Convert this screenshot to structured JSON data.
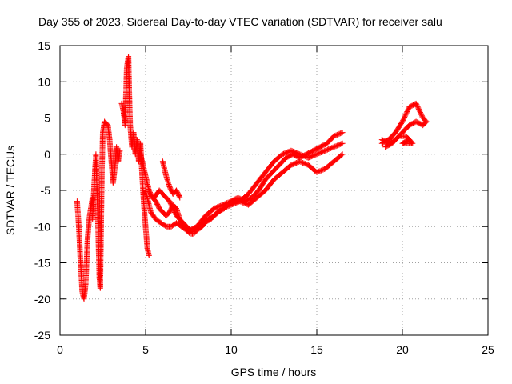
{
  "chart_data": {
    "type": "scatter",
    "title": "Day 355 of 2023, Sidereal Day-to-day VTEC variation (SDTVAR) for receiver salu",
    "xlabel": "GPS time / hours",
    "ylabel": "SDTVAR / TECUs",
    "xlim": [
      0,
      25
    ],
    "ylim": [
      -25,
      15
    ],
    "xticks": [
      0,
      5,
      10,
      15,
      20,
      25
    ],
    "yticks": [
      -25,
      -20,
      -15,
      -10,
      -5,
      0,
      5,
      10,
      15
    ],
    "grid": true,
    "marker": "+",
    "series": [
      {
        "name": "SDTVAR",
        "color": "#ff0000",
        "tracks": [
          [
            [
              1.0,
              -6.5
            ],
            [
              1.1,
              -10.0
            ],
            [
              1.2,
              -15.0
            ],
            [
              1.3,
              -19.0
            ],
            [
              1.4,
              -20.0
            ],
            [
              1.5,
              -18.0
            ],
            [
              1.6,
              -12.0
            ],
            [
              1.7,
              -9.0
            ],
            [
              1.8,
              -7.5
            ],
            [
              1.9,
              -6.0
            ]
          ],
          [
            [
              1.9,
              -9.0
            ],
            [
              2.0,
              -4.0
            ],
            [
              2.1,
              0.0
            ],
            [
              2.2,
              -8.0
            ],
            [
              2.3,
              -17.0
            ],
            [
              2.35,
              -18.5
            ],
            [
              2.4,
              -10.0
            ],
            [
              2.45,
              -2.0
            ],
            [
              2.5,
              3.0
            ],
            [
              2.6,
              4.5
            ],
            [
              2.8,
              4.0
            ],
            [
              2.9,
              2.0
            ],
            [
              3.0,
              -1.0
            ],
            [
              3.1,
              -4.0
            ],
            [
              3.2,
              -2.0
            ],
            [
              3.3,
              1.0
            ],
            [
              3.4,
              -1.0
            ],
            [
              3.5,
              0.5
            ]
          ],
          [
            [
              3.6,
              7.0
            ],
            [
              3.7,
              6.0
            ],
            [
              3.8,
              4.0
            ],
            [
              3.9,
              12.0
            ],
            [
              4.0,
              13.5
            ],
            [
              4.05,
              8.0
            ],
            [
              4.1,
              4.0
            ],
            [
              4.2,
              1.0
            ],
            [
              4.3,
              3.0
            ],
            [
              4.4,
              0.0
            ],
            [
              4.5,
              2.0
            ],
            [
              4.6,
              -1.0
            ],
            [
              4.7,
              1.5
            ],
            [
              4.8,
              -3.0
            ],
            [
              4.9,
              -7.0
            ],
            [
              5.0,
              -10.0
            ],
            [
              5.1,
              -13.0
            ],
            [
              5.2,
              -14.0
            ]
          ],
          [
            [
              4.7,
              0.0
            ],
            [
              5.0,
              -3.0
            ],
            [
              5.2,
              -5.0
            ],
            [
              5.4,
              -6.0
            ],
            [
              5.6,
              -6.5
            ],
            [
              5.8,
              -7.5
            ],
            [
              6.0,
              -8.0
            ],
            [
              6.2,
              -8.5
            ],
            [
              6.4,
              -8.0
            ],
            [
              6.6,
              -7.0
            ],
            [
              6.8,
              -7.5
            ],
            [
              7.0,
              -9.0
            ],
            [
              7.2,
              -10.0
            ],
            [
              7.4,
              -10.5
            ],
            [
              7.6,
              -11.0
            ],
            [
              7.8,
              -11.0
            ],
            [
              8.0,
              -10.5
            ],
            [
              8.3,
              -10.0
            ],
            [
              8.6,
              -9.0
            ],
            [
              9.0,
              -8.5
            ],
            [
              9.5,
              -7.5
            ],
            [
              10.0,
              -7.0
            ],
            [
              10.5,
              -6.5
            ],
            [
              11.0,
              -7.0
            ],
            [
              11.5,
              -6.0
            ],
            [
              12.0,
              -5.0
            ],
            [
              12.5,
              -3.5
            ],
            [
              13.0,
              -2.5
            ],
            [
              13.5,
              -1.5
            ],
            [
              14.0,
              -1.0
            ],
            [
              14.5,
              -1.5
            ],
            [
              15.0,
              -2.5
            ],
            [
              15.5,
              -2.0
            ],
            [
              16.0,
              -1.0
            ],
            [
              16.5,
              0.0
            ]
          ],
          [
            [
              5.0,
              -5.0
            ],
            [
              5.3,
              -8.0
            ],
            [
              5.6,
              -9.0
            ],
            [
              5.9,
              -9.5
            ],
            [
              6.2,
              -10.0
            ],
            [
              6.5,
              -10.0
            ],
            [
              6.8,
              -9.5
            ],
            [
              7.1,
              -10.0
            ],
            [
              7.4,
              -10.5
            ],
            [
              7.7,
              -10.5
            ],
            [
              8.0,
              -10.0
            ],
            [
              8.4,
              -9.5
            ],
            [
              8.8,
              -9.0
            ],
            [
              9.2,
              -8.0
            ],
            [
              9.6,
              -7.5
            ],
            [
              10.0,
              -6.5
            ],
            [
              10.4,
              -6.0
            ],
            [
              10.8,
              -6.5
            ],
            [
              11.2,
              -6.0
            ],
            [
              11.6,
              -5.0
            ],
            [
              12.0,
              -3.5
            ],
            [
              12.4,
              -2.5
            ],
            [
              12.8,
              -1.5
            ],
            [
              13.2,
              -0.5
            ],
            [
              13.6,
              0.0
            ],
            [
              14.0,
              -0.5
            ],
            [
              14.4,
              0.0
            ],
            [
              14.8,
              0.5
            ],
            [
              15.2,
              1.0
            ],
            [
              15.6,
              1.5
            ],
            [
              16.0,
              2.5
            ],
            [
              16.5,
              3.0
            ]
          ],
          [
            [
              5.5,
              -6.0
            ],
            [
              5.8,
              -5.0
            ],
            [
              6.0,
              -5.5
            ],
            [
              6.4,
              -6.5
            ],
            [
              6.8,
              -8.5
            ],
            [
              7.2,
              -9.5
            ],
            [
              7.6,
              -10.5
            ],
            [
              8.0,
              -10.0
            ],
            [
              8.5,
              -8.5
            ],
            [
              9.0,
              -7.5
            ],
            [
              9.5,
              -7.0
            ],
            [
              10.0,
              -6.5
            ],
            [
              10.5,
              -6.5
            ],
            [
              11.0,
              -5.5
            ],
            [
              11.5,
              -4.0
            ],
            [
              12.0,
              -2.5
            ],
            [
              12.5,
              -1.0
            ],
            [
              13.0,
              0.0
            ],
            [
              13.5,
              0.5
            ],
            [
              14.0,
              0.0
            ],
            [
              14.5,
              -0.5
            ],
            [
              15.0,
              0.0
            ],
            [
              15.5,
              0.5
            ],
            [
              16.0,
              1.0
            ],
            [
              16.5,
              1.5
            ]
          ],
          [
            [
              6.0,
              -1.0
            ],
            [
              6.2,
              -3.0
            ],
            [
              6.4,
              -4.5
            ],
            [
              6.6,
              -5.5
            ],
            [
              6.8,
              -5.0
            ],
            [
              7.0,
              -6.0
            ]
          ],
          [
            [
              18.8,
              1.5
            ],
            [
              19.2,
              2.0
            ],
            [
              19.6,
              3.0
            ],
            [
              20.0,
              4.5
            ],
            [
              20.4,
              6.5
            ],
            [
              20.8,
              7.0
            ],
            [
              21.2,
              5.0
            ],
            [
              21.4,
              4.5
            ]
          ],
          [
            [
              18.8,
              2.0
            ],
            [
              19.2,
              1.5
            ],
            [
              19.6,
              2.0
            ],
            [
              20.0,
              3.0
            ],
            [
              20.4,
              4.0
            ],
            [
              20.8,
              4.5
            ],
            [
              21.2,
              4.0
            ],
            [
              21.4,
              4.5
            ]
          ],
          [
            [
              19.0,
              1.0
            ],
            [
              19.4,
              1.5
            ],
            [
              19.8,
              2.5
            ],
            [
              20.2,
              2.5
            ],
            [
              20.6,
              1.5
            ],
            [
              20.0,
              1.5
            ],
            [
              20.4,
              2.0
            ]
          ]
        ]
      }
    ]
  }
}
